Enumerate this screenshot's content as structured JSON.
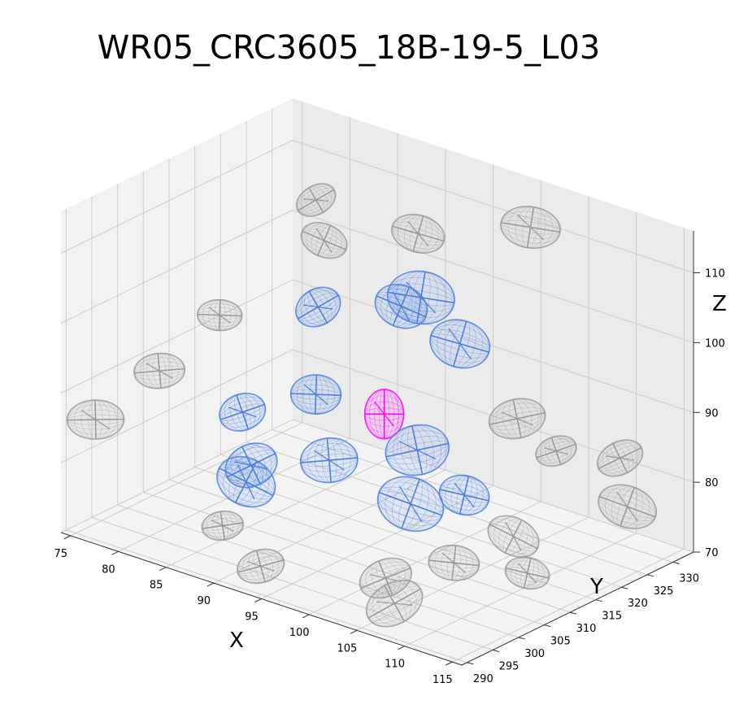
{
  "chart_data": {
    "type": "scatter",
    "subtype": "3d-ellipsoids",
    "title": "WR05_CRC3605_18B-19-5_L03",
    "xlabel": "X",
    "ylabel": "Y",
    "zlabel": "Z",
    "xlim": [
      74,
      116
    ],
    "ylim": [
      289,
      334
    ],
    "zlim": [
      70,
      116
    ],
    "x_ticks": [
      75,
      80,
      85,
      90,
      95,
      100,
      105,
      110,
      115
    ],
    "y_ticks": [
      290,
      295,
      300,
      305,
      310,
      315,
      320,
      325,
      330
    ],
    "z_ticks": [
      70,
      80,
      90,
      100,
      110
    ],
    "grid": true,
    "colors": {
      "highlight": "#ff00ff",
      "neighbor": "#4a7fe0",
      "other": "#999999"
    },
    "series": [
      {
        "group": "highlight",
        "color": "#ff00ff",
        "points": [
          {
            "x": 96,
            "y": 311,
            "z": 89
          }
        ]
      },
      {
        "group": "neighbor",
        "color": "#4a7fe0",
        "points": [
          {
            "x": 88,
            "y": 313,
            "z": 100
          },
          {
            "x": 94,
            "y": 318,
            "z": 101
          },
          {
            "x": 98,
            "y": 322,
            "z": 96
          },
          {
            "x": 95,
            "y": 320,
            "z": 102
          },
          {
            "x": 91,
            "y": 307,
            "z": 91
          },
          {
            "x": 94,
            "y": 304,
            "z": 84
          },
          {
            "x": 100,
            "y": 310,
            "z": 86
          },
          {
            "x": 86,
            "y": 302,
            "z": 88
          },
          {
            "x": 88,
            "y": 300,
            "z": 82
          },
          {
            "x": 88,
            "y": 299,
            "z": 80
          },
          {
            "x": 102,
            "y": 305,
            "z": 81
          },
          {
            "x": 106,
            "y": 308,
            "z": 83
          }
        ]
      },
      {
        "group": "other",
        "color": "#999999",
        "points": [
          {
            "x": 84,
            "y": 320,
            "z": 111
          },
          {
            "x": 87,
            "y": 316,
            "z": 108
          },
          {
            "x": 92,
            "y": 325,
            "z": 108
          },
          {
            "x": 100,
            "y": 332,
            "z": 110
          },
          {
            "x": 82,
            "y": 305,
            "z": 99
          },
          {
            "x": 80,
            "y": 297,
            "z": 93
          },
          {
            "x": 104,
            "y": 322,
            "z": 88
          },
          {
            "x": 107,
            "y": 324,
            "z": 84
          },
          {
            "x": 111,
            "y": 329,
            "z": 83
          },
          {
            "x": 109,
            "y": 312,
            "z": 77
          },
          {
            "x": 115,
            "y": 323,
            "z": 80
          },
          {
            "x": 111,
            "y": 311,
            "z": 73
          },
          {
            "x": 106,
            "y": 306,
            "z": 74
          },
          {
            "x": 76,
            "y": 292,
            "z": 86
          },
          {
            "x": 85,
            "y": 300,
            "z": 72
          },
          {
            "x": 89,
            "y": 300,
            "z": 68
          },
          {
            "x": 101,
            "y": 302,
            "z": 71
          },
          {
            "x": 103,
            "y": 300,
            "z": 69
          }
        ]
      }
    ]
  }
}
